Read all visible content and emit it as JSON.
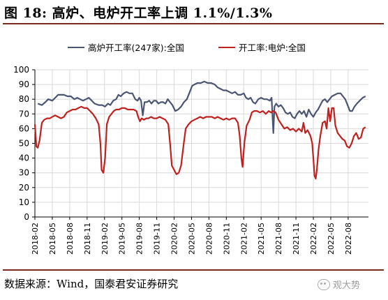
{
  "header": {
    "title": "图 18:  高炉、电炉开工率上调 1.1%/1.3%"
  },
  "footer": {
    "source": "数据来源：Wind，国泰君安证券研究",
    "watermark": "观大势"
  },
  "colors": {
    "blast_furnace": "#4a5573",
    "electric_furnace": "#c0201e",
    "rule": "#7a2a1c"
  },
  "chart_data": {
    "type": "line",
    "title": "",
    "xlabel": "",
    "ylabel": "",
    "ylim": [
      0,
      100
    ],
    "yticks": [
      0,
      10,
      20,
      30,
      40,
      50,
      60,
      70,
      80,
      90,
      100
    ],
    "xlim": [
      0,
      57.5
    ],
    "xticks": [
      {
        "pos": 0,
        "label": "2018-02"
      },
      {
        "pos": 3,
        "label": "2018-05"
      },
      {
        "pos": 6,
        "label": "2018-08"
      },
      {
        "pos": 9,
        "label": "2018-11"
      },
      {
        "pos": 12,
        "label": "2019-02"
      },
      {
        "pos": 15,
        "label": "2019-05"
      },
      {
        "pos": 18,
        "label": "2019-08"
      },
      {
        "pos": 21,
        "label": "2019-11"
      },
      {
        "pos": 24,
        "label": "2020-02"
      },
      {
        "pos": 27,
        "label": "2020-05"
      },
      {
        "pos": 30,
        "label": "2020-08"
      },
      {
        "pos": 33,
        "label": "2020-11"
      },
      {
        "pos": 36,
        "label": "2021-02"
      },
      {
        "pos": 39,
        "label": "2021-05"
      },
      {
        "pos": 42,
        "label": "2021-08"
      },
      {
        "pos": 45,
        "label": "2021-11"
      },
      {
        "pos": 48,
        "label": "2022-02"
      },
      {
        "pos": 51,
        "label": "2022-05"
      },
      {
        "pos": 54,
        "label": "2022-08"
      }
    ],
    "grid": true,
    "legend_position": "top",
    "series": [
      {
        "name": "高炉开工率(247家):全国",
        "color": "#4a5573",
        "points": [
          [
            0.5,
            77
          ],
          [
            1.2,
            76
          ],
          [
            1.8,
            78
          ],
          [
            2.3,
            80
          ],
          [
            3,
            79
          ],
          [
            3.5,
            81
          ],
          [
            4,
            83
          ],
          [
            4.5,
            83
          ],
          [
            5,
            83
          ],
          [
            5.6,
            82
          ],
          [
            6.2,
            82
          ],
          [
            6.8,
            80
          ],
          [
            7.3,
            81
          ],
          [
            7.8,
            80
          ],
          [
            8.3,
            79
          ],
          [
            8.8,
            80
          ],
          [
            9.3,
            81
          ],
          [
            9.8,
            79
          ],
          [
            10.3,
            77
          ],
          [
            11,
            76
          ],
          [
            11.6,
            76
          ],
          [
            12.1,
            75
          ],
          [
            12.6,
            77
          ],
          [
            13,
            76
          ],
          [
            13.5,
            79
          ],
          [
            14,
            80
          ],
          [
            14.4,
            83
          ],
          [
            14.8,
            82
          ],
          [
            15.3,
            84
          ],
          [
            15.8,
            85
          ],
          [
            16.3,
            84
          ],
          [
            16.8,
            84
          ],
          [
            17.3,
            80
          ],
          [
            17.7,
            79
          ],
          [
            18,
            81
          ],
          [
            18.3,
            79
          ],
          [
            18.6,
            69
          ],
          [
            18.9,
            78
          ],
          [
            19.3,
            78
          ],
          [
            19.7,
            79
          ],
          [
            20.1,
            77
          ],
          [
            20.5,
            79
          ],
          [
            20.9,
            79
          ],
          [
            21.3,
            77
          ],
          [
            21.7,
            78
          ],
          [
            22.1,
            78
          ],
          [
            22.5,
            77
          ],
          [
            22.9,
            80
          ],
          [
            23.3,
            78
          ],
          [
            23.7,
            76
          ],
          [
            24.2,
            72
          ],
          [
            24.7,
            73
          ],
          [
            25.2,
            75
          ],
          [
            25.7,
            78
          ],
          [
            26.2,
            80
          ],
          [
            26.7,
            85
          ],
          [
            27.1,
            89
          ],
          [
            27.5,
            90
          ],
          [
            28,
            91
          ],
          [
            28.6,
            91
          ],
          [
            29.2,
            92
          ],
          [
            29.8,
            91
          ],
          [
            30.4,
            91
          ],
          [
            31,
            90
          ],
          [
            31.5,
            88
          ],
          [
            32,
            87
          ],
          [
            32.5,
            86
          ],
          [
            33,
            86
          ],
          [
            33.5,
            85
          ],
          [
            34,
            84
          ],
          [
            34.5,
            85
          ],
          [
            35,
            83
          ],
          [
            35.5,
            83
          ],
          [
            36,
            84
          ],
          [
            36.4,
            81
          ],
          [
            36.8,
            80
          ],
          [
            37.2,
            81
          ],
          [
            37.6,
            78
          ],
          [
            38,
            77
          ],
          [
            38.5,
            80
          ],
          [
            39,
            81
          ],
          [
            39.5,
            80
          ],
          [
            40,
            80
          ],
          [
            40.5,
            79
          ],
          [
            40.8,
            81
          ],
          [
            41.1,
            57
          ],
          [
            41.3,
            75
          ],
          [
            41.6,
            77
          ],
          [
            42,
            75
          ],
          [
            42.4,
            76
          ],
          [
            42.8,
            74
          ],
          [
            43.2,
            71
          ],
          [
            43.6,
            70
          ],
          [
            44,
            71
          ],
          [
            44.4,
            68
          ],
          [
            44.8,
            67
          ],
          [
            45.2,
            70
          ],
          [
            45.6,
            72
          ],
          [
            46,
            70
          ],
          [
            46.4,
            72
          ],
          [
            46.8,
            68
          ],
          [
            47.2,
            73
          ],
          [
            47.6,
            70
          ],
          [
            48,
            68
          ],
          [
            48.4,
            71
          ],
          [
            48.8,
            73
          ],
          [
            49.2,
            76
          ],
          [
            49.6,
            79
          ],
          [
            50,
            80
          ],
          [
            50.4,
            78
          ],
          [
            50.8,
            80
          ],
          [
            51.2,
            82
          ],
          [
            51.7,
            83
          ],
          [
            52.2,
            84
          ],
          [
            52.7,
            84
          ],
          [
            53.1,
            82
          ],
          [
            53.5,
            80
          ],
          [
            53.9,
            76
          ],
          [
            54.3,
            72
          ],
          [
            54.7,
            72
          ],
          [
            55.1,
            75
          ],
          [
            55.5,
            77
          ],
          [
            56,
            79
          ],
          [
            56.5,
            81
          ],
          [
            57,
            82
          ]
        ]
      },
      {
        "name": "开工率:电炉:全国",
        "color": "#c0201e",
        "points": [
          [
            0,
            63
          ],
          [
            0.25,
            48
          ],
          [
            0.5,
            47
          ],
          [
            0.8,
            52
          ],
          [
            1.2,
            64
          ],
          [
            1.6,
            66
          ],
          [
            2.1,
            67
          ],
          [
            2.6,
            67
          ],
          [
            3,
            68
          ],
          [
            3.5,
            69
          ],
          [
            4,
            68
          ],
          [
            4.5,
            67
          ],
          [
            5,
            68
          ],
          [
            5.5,
            71
          ],
          [
            6,
            72
          ],
          [
            6.5,
            73
          ],
          [
            7,
            73
          ],
          [
            7.5,
            74
          ],
          [
            8,
            75
          ],
          [
            8.5,
            74
          ],
          [
            9,
            74
          ],
          [
            9.5,
            72
          ],
          [
            10,
            70
          ],
          [
            10.5,
            67
          ],
          [
            11,
            63
          ],
          [
            11.3,
            50
          ],
          [
            11.5,
            32
          ],
          [
            11.8,
            30
          ],
          [
            12.1,
            40
          ],
          [
            12.4,
            63
          ],
          [
            12.8,
            68
          ],
          [
            13.2,
            70
          ],
          [
            13.6,
            72
          ],
          [
            14,
            73
          ],
          [
            14.5,
            73
          ],
          [
            15,
            74
          ],
          [
            15.5,
            74
          ],
          [
            16,
            73
          ],
          [
            16.5,
            73
          ],
          [
            17,
            73
          ],
          [
            17.5,
            72
          ],
          [
            17.8,
            68
          ],
          [
            18.1,
            65
          ],
          [
            18.4,
            67
          ],
          [
            18.8,
            66
          ],
          [
            19.2,
            67
          ],
          [
            19.6,
            67
          ],
          [
            20,
            68
          ],
          [
            20.5,
            67
          ],
          [
            21,
            67
          ],
          [
            21.5,
            68
          ],
          [
            22,
            67
          ],
          [
            22.5,
            66
          ],
          [
            23,
            63
          ],
          [
            23.3,
            50
          ],
          [
            23.6,
            35
          ],
          [
            24,
            32
          ],
          [
            24.4,
            29
          ],
          [
            24.8,
            30
          ],
          [
            25.2,
            35
          ],
          [
            25.6,
            48
          ],
          [
            26,
            60
          ],
          [
            26.5,
            63
          ],
          [
            27,
            65
          ],
          [
            27.5,
            66
          ],
          [
            28,
            67
          ],
          [
            28.5,
            68
          ],
          [
            29,
            67
          ],
          [
            29.5,
            68
          ],
          [
            30,
            68
          ],
          [
            30.5,
            68
          ],
          [
            31,
            67
          ],
          [
            31.5,
            68
          ],
          [
            32,
            67
          ],
          [
            32.5,
            66
          ],
          [
            33,
            67
          ],
          [
            33.5,
            66
          ],
          [
            34,
            67
          ],
          [
            34.5,
            67
          ],
          [
            35,
            64
          ],
          [
            35.3,
            55
          ],
          [
            35.6,
            40
          ],
          [
            35.8,
            34
          ],
          [
            36.1,
            50
          ],
          [
            36.5,
            62
          ],
          [
            37,
            66
          ],
          [
            37.4,
            71
          ],
          [
            37.8,
            72
          ],
          [
            38.3,
            72
          ],
          [
            38.8,
            71
          ],
          [
            39.3,
            72
          ],
          [
            39.8,
            70
          ],
          [
            40.3,
            72
          ],
          [
            40.7,
            71
          ],
          [
            41.1,
            72
          ],
          [
            41.5,
            71
          ],
          [
            42,
            66
          ],
          [
            42.5,
            63
          ],
          [
            43,
            60
          ],
          [
            43.5,
            61
          ],
          [
            44,
            59
          ],
          [
            44.5,
            60
          ],
          [
            45,
            58
          ],
          [
            45.5,
            60
          ],
          [
            46,
            58
          ],
          [
            46.3,
            64
          ],
          [
            46.6,
            57
          ],
          [
            47,
            59
          ],
          [
            47.5,
            55
          ],
          [
            47.8,
            50
          ],
          [
            48,
            40
          ],
          [
            48.2,
            28
          ],
          [
            48.4,
            26
          ],
          [
            48.6,
            32
          ],
          [
            48.9,
            46
          ],
          [
            49.2,
            55
          ],
          [
            49.6,
            64
          ],
          [
            50,
            65
          ],
          [
            50.3,
            60
          ],
          [
            50.6,
            74
          ],
          [
            50.9,
            65
          ],
          [
            51.2,
            74
          ],
          [
            51.5,
            74
          ],
          [
            51.8,
            62
          ],
          [
            52.2,
            57
          ],
          [
            52.6,
            55
          ],
          [
            53,
            53
          ],
          [
            53.4,
            52
          ],
          [
            53.8,
            48
          ],
          [
            54.2,
            47
          ],
          [
            54.6,
            50
          ],
          [
            55,
            55
          ],
          [
            55.4,
            57
          ],
          [
            55.8,
            53
          ],
          [
            56.2,
            54
          ],
          [
            56.6,
            60
          ],
          [
            57,
            61
          ]
        ]
      }
    ]
  }
}
